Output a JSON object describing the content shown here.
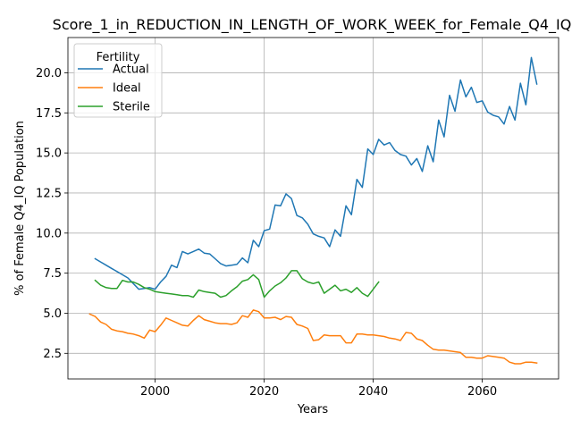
{
  "chart_data": {
    "type": "line",
    "title": "Score_1_in_REDUCTION_IN_LENGTH_OF_WORK_WEEK_for_Female_Q4_IQ",
    "xlabel": "Years",
    "ylabel": "% of Female Q4_IQ Population",
    "xlim": [
      1984,
      2074
    ],
    "ylim": [
      0.9,
      22.2
    ],
    "xticks": [
      2000,
      2020,
      2040,
      2060
    ],
    "yticks": [
      2.5,
      5.0,
      7.5,
      10.0,
      12.5,
      15.0,
      17.5,
      20.0
    ],
    "ytick_labels": [
      "2.5",
      "5.0",
      "7.5",
      "10.0",
      "12.5",
      "15.0",
      "17.5",
      "20.0"
    ],
    "grid": true,
    "legend": {
      "title": "Fertility",
      "placement": "top-left"
    },
    "series": [
      {
        "name": "Actual",
        "color": "#1f77b4",
        "x": [
          1989,
          1990,
          1991,
          1992,
          1993,
          1994,
          1995,
          1996,
          1997,
          1998,
          1999,
          2000,
          2001,
          2002,
          2003,
          2004,
          2005,
          2006,
          2007,
          2008,
          2009,
          2010,
          2011,
          2012,
          2013,
          2014,
          2015,
          2016,
          2017,
          2018,
          2019,
          2020,
          2021,
          2022,
          2023,
          2024,
          2025,
          2026,
          2027,
          2028,
          2029,
          2030,
          2031,
          2032,
          2033,
          2034,
          2035,
          2036,
          2037,
          2038,
          2039,
          2040,
          2041,
          2042,
          2043,
          2044,
          2045,
          2046,
          2047,
          2048,
          2049,
          2050,
          2051,
          2052,
          2053,
          2054,
          2055,
          2056,
          2057,
          2058,
          2059,
          2060,
          2061,
          2062,
          2063,
          2064,
          2065,
          2066,
          2067,
          2068,
          2069,
          2070
        ],
        "y": [
          8.4,
          8.2,
          8.0,
          7.8,
          7.6,
          7.4,
          7.2,
          6.85,
          6.5,
          6.55,
          6.6,
          6.5,
          6.95,
          7.3,
          8.0,
          7.85,
          8.85,
          8.7,
          8.85,
          9.0,
          8.75,
          8.7,
          8.4,
          8.1,
          7.95,
          8.0,
          8.05,
          8.45,
          8.15,
          9.55,
          9.15,
          10.15,
          10.25,
          11.75,
          11.7,
          12.45,
          12.15,
          11.1,
          10.95,
          10.55,
          9.95,
          9.8,
          9.7,
          9.15,
          10.2,
          9.8,
          11.7,
          11.15,
          13.35,
          12.85,
          15.25,
          14.9,
          15.85,
          15.5,
          15.65,
          15.15,
          14.9,
          14.8,
          14.25,
          14.65,
          13.85,
          15.45,
          14.45,
          17.05,
          16.0,
          18.6,
          17.6,
          19.55,
          18.5,
          19.1,
          18.15,
          18.25,
          17.55,
          17.35,
          17.25,
          16.8,
          17.9,
          17.05,
          19.35,
          18.0,
          20.95,
          19.3
        ]
      },
      {
        "name": "Ideal",
        "color": "#ff7f0e",
        "x": [
          1988,
          1989,
          1990,
          1991,
          1992,
          1993,
          1994,
          1995,
          1996,
          1997,
          1998,
          1999,
          2000,
          2001,
          2002,
          2003,
          2004,
          2005,
          2006,
          2007,
          2008,
          2009,
          2010,
          2011,
          2012,
          2013,
          2014,
          2015,
          2016,
          2017,
          2018,
          2019,
          2020,
          2021,
          2022,
          2023,
          2024,
          2025,
          2026,
          2027,
          2028,
          2029,
          2030,
          2031,
          2032,
          2033,
          2034,
          2035,
          2036,
          2037,
          2038,
          2039,
          2040,
          2041,
          2042,
          2043,
          2044,
          2045,
          2046,
          2047,
          2048,
          2049,
          2050,
          2051,
          2052,
          2053,
          2054,
          2055,
          2056,
          2057,
          2058,
          2059,
          2060,
          2061,
          2062,
          2063,
          2064,
          2065,
          2066,
          2067,
          2068,
          2069,
          2070
        ],
        "y": [
          4.95,
          4.8,
          4.45,
          4.3,
          4.0,
          3.9,
          3.85,
          3.75,
          3.7,
          3.6,
          3.45,
          3.95,
          3.85,
          4.25,
          4.7,
          4.55,
          4.4,
          4.25,
          4.2,
          4.55,
          4.85,
          4.6,
          4.5,
          4.4,
          4.35,
          4.35,
          4.3,
          4.4,
          4.85,
          4.75,
          5.2,
          5.1,
          4.7,
          4.7,
          4.75,
          4.6,
          4.8,
          4.75,
          4.3,
          4.2,
          4.05,
          3.3,
          3.35,
          3.65,
          3.6,
          3.6,
          3.6,
          3.15,
          3.15,
          3.7,
          3.7,
          3.65,
          3.65,
          3.6,
          3.55,
          3.45,
          3.4,
          3.3,
          3.8,
          3.75,
          3.4,
          3.3,
          3.0,
          2.75,
          2.7,
          2.7,
          2.65,
          2.6,
          2.55,
          2.25,
          2.25,
          2.2,
          2.2,
          2.35,
          2.3,
          2.25,
          2.2,
          1.95,
          1.85,
          1.85,
          1.95,
          1.95,
          1.9
        ]
      },
      {
        "name": "Sterile",
        "color": "#2ca02c",
        "x": [
          1989,
          1990,
          1991,
          1992,
          1993,
          1994,
          1995,
          1996,
          1997,
          1998,
          1999,
          2000,
          2001,
          2002,
          2003,
          2004,
          2005,
          2006,
          2007,
          2008,
          2009,
          2010,
          2011,
          2012,
          2013,
          2014,
          2015,
          2016,
          2017,
          2018,
          2019,
          2020,
          2021,
          2022,
          2023,
          2024,
          2025,
          2026,
          2027,
          2028,
          2029,
          2030,
          2031,
          2032,
          2033,
          2034,
          2035,
          2036,
          2037,
          2038,
          2039,
          2040,
          2041
        ],
        "y": [
          7.05,
          6.75,
          6.6,
          6.55,
          6.55,
          7.05,
          6.95,
          6.95,
          6.8,
          6.6,
          6.5,
          6.35,
          6.3,
          6.25,
          6.2,
          6.15,
          6.1,
          6.1,
          6.0,
          6.45,
          6.35,
          6.3,
          6.25,
          6.0,
          6.1,
          6.4,
          6.65,
          7.0,
          7.1,
          7.4,
          7.1,
          6.0,
          6.4,
          6.7,
          6.9,
          7.2,
          7.65,
          7.65,
          7.15,
          6.95,
          6.85,
          6.95,
          6.25,
          6.5,
          6.75,
          6.4,
          6.5,
          6.3,
          6.6,
          6.25,
          6.05,
          6.5,
          6.95
        ]
      }
    ]
  }
}
